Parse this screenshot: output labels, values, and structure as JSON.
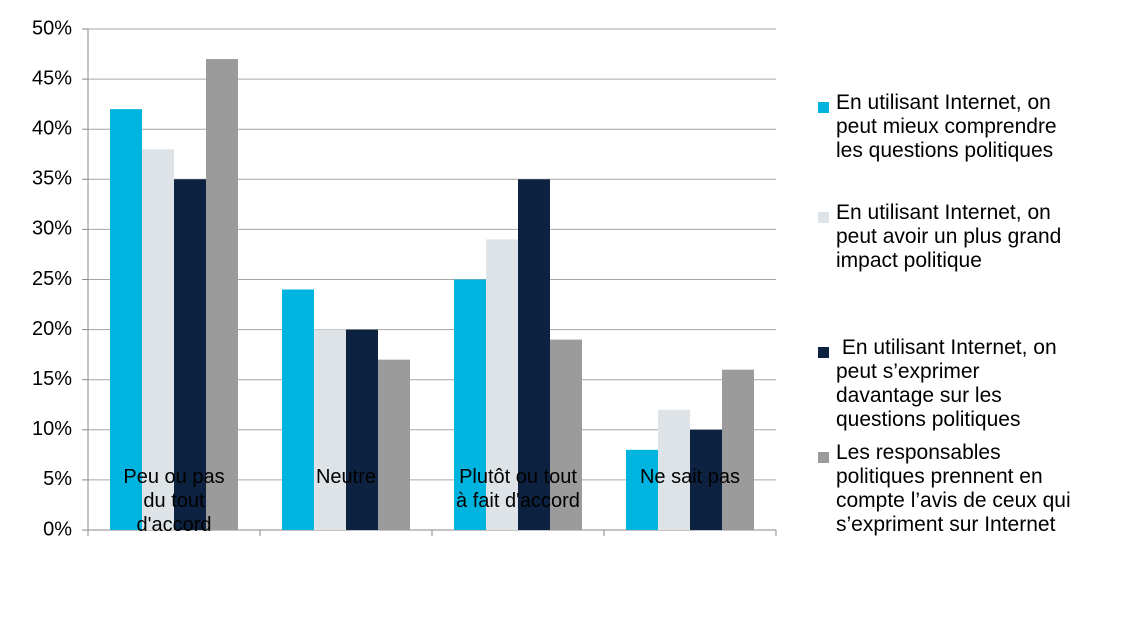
{
  "chart_data": {
    "type": "bar",
    "categories": [
      "Peu ou pas\ndu tout\nd'accord",
      "Neutre",
      "Plutôt ou tout\nà fait d'accord",
      "Ne sait pas"
    ],
    "series": [
      {
        "name": "En utilisant Internet, on\npeut mieux comprendre\nles questions politiques",
        "color": "#00b4e0",
        "values": [
          42,
          24,
          25,
          8
        ]
      },
      {
        "name": "En utilisant Internet, on\npeut avoir un plus grand\nimpact politique",
        "color": "#dde3e6",
        "values": [
          38,
          20,
          29,
          12
        ]
      },
      {
        "name": " En utilisant Internet, on\npeut s’exprimer\ndavantage sur les\nquestions politiques",
        "color": "#0d2240",
        "values": [
          35,
          20,
          35,
          10
        ]
      },
      {
        "name": "Les responsables\npolitiques prennent en\ncompte l’avis de ceux qui\ns’expriment sur Internet",
        "color": "#9b9b9b",
        "values": [
          47,
          17,
          19,
          16
        ]
      }
    ],
    "ylim": [
      0,
      50
    ],
    "yticks": [
      {
        "value": 0,
        "label": "0%"
      },
      {
        "value": 5,
        "label": "5%"
      },
      {
        "value": 10,
        "label": "10%"
      },
      {
        "value": 15,
        "label": "15%"
      },
      {
        "value": 20,
        "label": "20%"
      },
      {
        "value": 25,
        "label": "25%"
      },
      {
        "value": 30,
        "label": "30%"
      },
      {
        "value": 35,
        "label": "35%"
      },
      {
        "value": 40,
        "label": "40%"
      },
      {
        "value": 45,
        "label": "45%"
      },
      {
        "value": 50,
        "label": "50%"
      }
    ],
    "grid": true,
    "legend": "right"
  }
}
